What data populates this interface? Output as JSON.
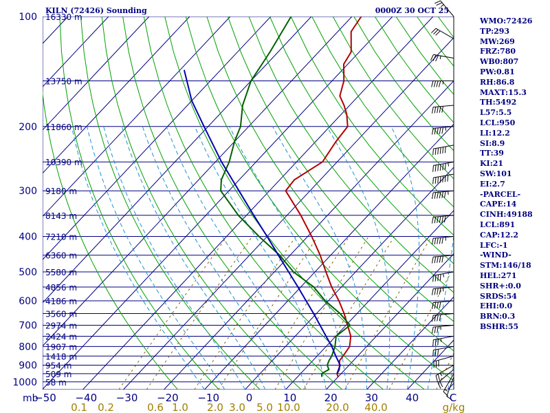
{
  "header": {
    "station": "KILN (72426) Sounding",
    "time": "0000Z 30 OCT 25"
  },
  "side_panel": [
    "WMO:72426",
    "TP:293",
    "MW:269",
    "FRZ:780",
    "WB0:807",
    "PW:0.81",
    "RH:86.8",
    "MAXT:15.3",
    "TH:5492",
    "L57:5.5",
    "LCL:950",
    "LI:12.2",
    "SI:8.9",
    "TT:39",
    "KI:21",
    "SW:101",
    "EI:2.7",
    "-PARCEL-",
    "CAPE:14",
    "CINH:49188",
    "LCL:891",
    "CAP:12.2",
    "LFC:-1",
    "-WIND-",
    "STM:146/18",
    "HEL:271",
    "SHR+:0.0",
    "SRDS:54",
    "EHI:0.0",
    "BRN:0.3",
    "BSHR:55"
  ],
  "chart_data": {
    "type": "skew-t",
    "pressure_axis_label": "mb",
    "pressure_ticks": [
      {
        "p": 100,
        "label": "100"
      },
      {
        "p": 200,
        "label": "200"
      },
      {
        "p": 300,
        "label": "300"
      },
      {
        "p": 400,
        "label": "400"
      },
      {
        "p": 500,
        "label": "500"
      },
      {
        "p": 600,
        "label": "600"
      },
      {
        "p": 700,
        "label": "700"
      },
      {
        "p": 800,
        "label": "800"
      },
      {
        "p": 900,
        "label": "900"
      },
      {
        "p": 1000,
        "label": "1000"
      }
    ],
    "height_labels": [
      {
        "p": 100,
        "label": "16330 m"
      },
      {
        "p": 150,
        "label": "13750 m"
      },
      {
        "p": 200,
        "label": "11860 m"
      },
      {
        "p": 250,
        "label": "10390 m"
      },
      {
        "p": 300,
        "label": "9180 m"
      },
      {
        "p": 350,
        "label": "8143 m"
      },
      {
        "p": 400,
        "label": "7210 m"
      },
      {
        "p": 450,
        "label": "6360 m"
      },
      {
        "p": 500,
        "label": "5580 m"
      },
      {
        "p": 550,
        "label": "4856 m"
      },
      {
        "p": 600,
        "label": "4186 m"
      },
      {
        "p": 650,
        "label": "3560 m"
      },
      {
        "p": 700,
        "label": "2974 m"
      },
      {
        "p": 750,
        "label": "2424 m"
      },
      {
        "p": 800,
        "label": "1907 m"
      },
      {
        "p": 850,
        "label": "1418 m"
      },
      {
        "p": 900,
        "label": "954 m"
      },
      {
        "p": 950,
        "label": "509 m"
      },
      {
        "p": 1000,
        "label": "58 m"
      }
    ],
    "temperature_ticks": [
      "−50",
      "−40",
      "−30",
      "−20",
      "−10",
      "0",
      "10",
      "20",
      "30",
      "40",
      "C"
    ],
    "mixing_ratio_labels": [
      "0.1",
      "0.2",
      "0.6",
      "1.0",
      "2.0",
      "3.0",
      "5.0",
      "10.0",
      "20.0",
      "40.0",
      "g/kg"
    ],
    "temperature_range_c": [
      -50,
      50
    ],
    "pressure_range_mb": [
      100,
      1050
    ],
    "series": [
      {
        "name": "temperature",
        "color": "#b00000",
        "points": [
          [
            969,
            10.0
          ],
          [
            950,
            9.0
          ],
          [
            925,
            8.6
          ],
          [
            900,
            7.6
          ],
          [
            875,
            6.6
          ],
          [
            850,
            6.4
          ],
          [
            800,
            5.8
          ],
          [
            750,
            3.7
          ],
          [
            700,
            0.4
          ],
          [
            650,
            -3.2
          ],
          [
            600,
            -7.4
          ],
          [
            550,
            -12.4
          ],
          [
            500,
            -17.3
          ],
          [
            450,
            -22.6
          ],
          [
            400,
            -29.0
          ],
          [
            350,
            -36.6
          ],
          [
            300,
            -46.0
          ],
          [
            280,
            -46.4
          ],
          [
            250,
            -43.6
          ],
          [
            220,
            -45.0
          ],
          [
            200,
            -45.6
          ],
          [
            185,
            -48.7
          ],
          [
            175,
            -51.4
          ],
          [
            165,
            -54.6
          ],
          [
            150,
            -57.1
          ],
          [
            135,
            -61.0
          ],
          [
            125,
            -62.0
          ],
          [
            110,
            -66.7
          ],
          [
            100,
            -67.7
          ]
        ]
      },
      {
        "name": "dewpoint",
        "color": "#006000",
        "points": [
          [
            969,
            6.0
          ],
          [
            950,
            5.2
          ],
          [
            925,
            6.0
          ],
          [
            900,
            4.6
          ],
          [
            875,
            4.0
          ],
          [
            850,
            3.6
          ],
          [
            800,
            2.2
          ],
          [
            750,
            0.1
          ],
          [
            700,
            1.0
          ],
          [
            650,
            -4.2
          ],
          [
            600,
            -10.8
          ],
          [
            550,
            -16.8
          ],
          [
            500,
            -25.3
          ],
          [
            450,
            -32.6
          ],
          [
            400,
            -42.0
          ],
          [
            350,
            -52.0
          ],
          [
            300,
            -62.0
          ],
          [
            280,
            -64.4
          ],
          [
            250,
            -66.6
          ],
          [
            220,
            -70.0
          ],
          [
            200,
            -72.0
          ],
          [
            175,
            -76.4
          ],
          [
            150,
            -80.0
          ],
          [
            125,
            -82.0
          ],
          [
            100,
            -85.0
          ]
        ]
      },
      {
        "name": "parcel",
        "color": "#0000b0",
        "points": [
          [
            950,
            9.0
          ],
          [
            900,
            7.8
          ],
          [
            850,
            4.6
          ],
          [
            800,
            1.4
          ],
          [
            750,
            -2.4
          ],
          [
            700,
            -6.4
          ],
          [
            650,
            -10.7
          ],
          [
            600,
            -15.5
          ],
          [
            550,
            -20.7
          ],
          [
            500,
            -26.5
          ],
          [
            450,
            -32.9
          ],
          [
            400,
            -40.0
          ],
          [
            350,
            -48.2
          ],
          [
            300,
            -57.5
          ],
          [
            250,
            -68.5
          ],
          [
            200,
            -81.0
          ],
          [
            170,
            -90.0
          ],
          [
            140,
            -99.0
          ]
        ]
      }
    ],
    "wind_barbs": [
      {
        "p": 969,
        "dir": 200,
        "kt": 10
      },
      {
        "p": 950,
        "dir": 210,
        "kt": 15
      },
      {
        "p": 925,
        "dir": 230,
        "kt": 20
      },
      {
        "p": 900,
        "dir": 240,
        "kt": 25
      },
      {
        "p": 850,
        "dir": 255,
        "kt": 30
      },
      {
        "p": 800,
        "dir": 260,
        "kt": 30
      },
      {
        "p": 750,
        "dir": 260,
        "kt": 35
      },
      {
        "p": 700,
        "dir": 265,
        "kt": 35
      },
      {
        "p": 650,
        "dir": 265,
        "kt": 40
      },
      {
        "p": 600,
        "dir": 265,
        "kt": 40
      },
      {
        "p": 550,
        "dir": 265,
        "kt": 45
      },
      {
        "p": 500,
        "dir": 260,
        "kt": 45
      },
      {
        "p": 450,
        "dir": 265,
        "kt": 50
      },
      {
        "p": 400,
        "dir": 265,
        "kt": 55
      },
      {
        "p": 350,
        "dir": 265,
        "kt": 60
      },
      {
        "p": 300,
        "dir": 265,
        "kt": 65
      },
      {
        "p": 270,
        "dir": 260,
        "kt": 70
      },
      {
        "p": 250,
        "dir": 260,
        "kt": 65
      },
      {
        "p": 225,
        "dir": 260,
        "kt": 60
      },
      {
        "p": 200,
        "dir": 265,
        "kt": 55
      },
      {
        "p": 175,
        "dir": 265,
        "kt": 50
      },
      {
        "p": 150,
        "dir": 270,
        "kt": 45
      },
      {
        "p": 130,
        "dir": 280,
        "kt": 35
      },
      {
        "p": 115,
        "dir": 300,
        "kt": 30
      },
      {
        "p": 100,
        "dir": 320,
        "kt": 25
      }
    ],
    "colors": {
      "isobar": "#000080",
      "isotherm": "#000080",
      "dry_adiabat": "#00a000",
      "moist_adiabat": "#2090d0",
      "mixing_ratio": "#806000",
      "text": "#000080",
      "mr_label": "#a08000",
      "barb": "#000000"
    }
  }
}
